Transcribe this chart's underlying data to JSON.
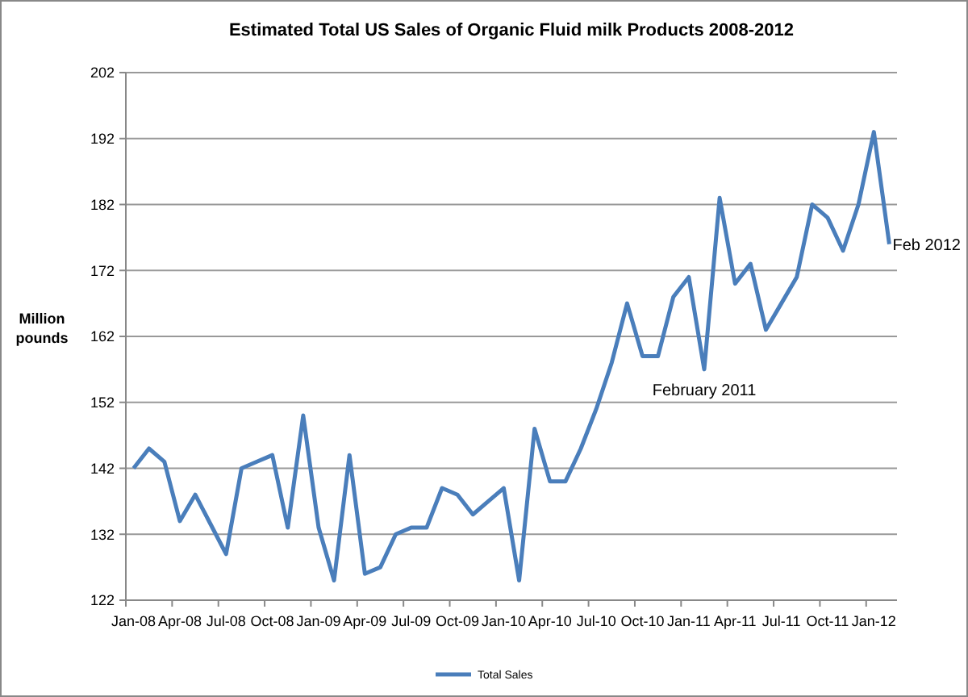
{
  "chart_data": {
    "type": "line",
    "title": "Estimated Total US Sales of Organic Fluid milk Products 2008-2012",
    "ylabel": "Million pounds",
    "categories": [
      "Jan-08",
      null,
      null,
      "Apr-08",
      null,
      null,
      "Jul-08",
      null,
      null,
      "Oct-08",
      null,
      null,
      "Jan-09",
      null,
      null,
      "Apr-09",
      null,
      null,
      "Jul-09",
      null,
      null,
      "Oct-09",
      null,
      null,
      "Jan-10",
      null,
      null,
      "Apr-10",
      null,
      null,
      "Jul-10",
      null,
      null,
      "Oct-10",
      null,
      null,
      "Jan-11",
      null,
      null,
      "Apr-11",
      null,
      null,
      "Jul-11",
      null,
      null,
      "Oct-11",
      null,
      null,
      "Jan-12",
      null
    ],
    "series": [
      {
        "name": "Total Sales",
        "color": "#4a7ebb",
        "values": [
          142,
          145,
          143,
          134,
          138,
          133.5,
          129,
          142,
          143,
          144,
          133,
          150,
          133,
          125,
          144,
          126,
          127,
          132,
          133,
          133,
          139,
          138,
          135,
          137,
          139,
          125,
          148,
          140,
          140,
          145,
          151,
          158,
          167,
          159,
          159,
          168,
          171,
          157,
          183,
          170,
          173,
          163,
          167,
          171,
          182,
          180,
          175,
          182,
          193,
          176
        ]
      }
    ],
    "ylim": [
      122,
      202
    ],
    "yticks": [
      122,
      132,
      142,
      152,
      162,
      172,
      182,
      192,
      202
    ],
    "grid": "y",
    "legend": "bottom",
    "marker": "none",
    "line_style": "solid",
    "annotations": [
      "February 2011",
      "Feb 2012"
    ]
  }
}
